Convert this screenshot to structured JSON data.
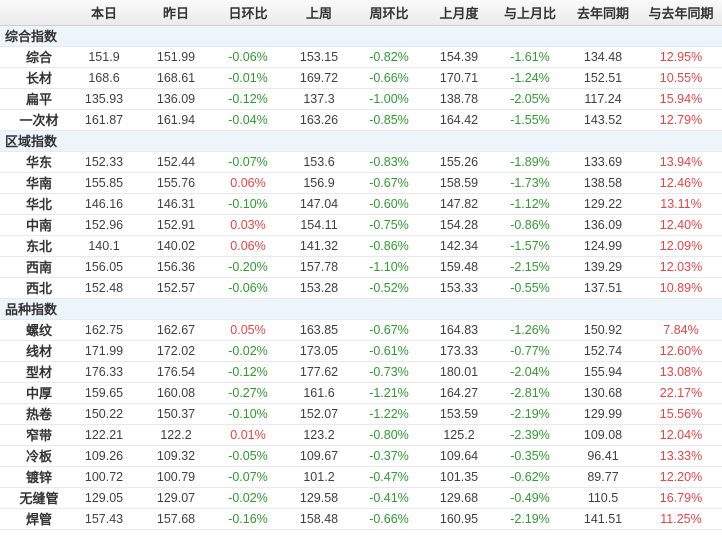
{
  "colors": {
    "negative_percent_green": "#319a31",
    "positive_percent_red": "#e54545",
    "section_row_background": "#edf4fa",
    "header_background": "#efefef",
    "text_dark": "#333333"
  },
  "table": {
    "columns": [
      "",
      "本日",
      "昨日",
      "日环比",
      "上周",
      "周环比",
      "上月度",
      "与上月比",
      "去年同期",
      "与去年同期"
    ],
    "percent_column_indexes": [
      2,
      4,
      6,
      8
    ],
    "sections": [
      {
        "label": "综合指数",
        "rows": [
          {
            "label": "综合",
            "values": [
              "151.9",
              "151.99",
              "-0.06%",
              "153.15",
              "-0.82%",
              "154.39",
              "-1.61%",
              "134.48",
              "12.95%"
            ]
          },
          {
            "label": "长材",
            "values": [
              "168.6",
              "168.61",
              "-0.01%",
              "169.72",
              "-0.66%",
              "170.71",
              "-1.24%",
              "152.51",
              "10.55%"
            ]
          },
          {
            "label": "扁平",
            "values": [
              "135.93",
              "136.09",
              "-0.12%",
              "137.3",
              "-1.00%",
              "138.78",
              "-2.05%",
              "117.24",
              "15.94%"
            ]
          },
          {
            "label": "一次材",
            "values": [
              "161.87",
              "161.94",
              "-0.04%",
              "163.26",
              "-0.85%",
              "164.42",
              "-1.55%",
              "143.52",
              "12.79%"
            ]
          }
        ]
      },
      {
        "label": "区域指数",
        "rows": [
          {
            "label": "华东",
            "values": [
              "152.33",
              "152.44",
              "-0.07%",
              "153.6",
              "-0.83%",
              "155.26",
              "-1.89%",
              "133.69",
              "13.94%"
            ]
          },
          {
            "label": "华南",
            "values": [
              "155.85",
              "155.76",
              "0.06%",
              "156.9",
              "-0.67%",
              "158.59",
              "-1.73%",
              "138.58",
              "12.46%"
            ]
          },
          {
            "label": "华北",
            "values": [
              "146.16",
              "146.31",
              "-0.10%",
              "147.04",
              "-0.60%",
              "147.82",
              "-1.12%",
              "129.22",
              "13.11%"
            ]
          },
          {
            "label": "中南",
            "values": [
              "152.96",
              "152.91",
              "0.03%",
              "154.11",
              "-0.75%",
              "154.28",
              "-0.86%",
              "136.09",
              "12.40%"
            ]
          },
          {
            "label": "东北",
            "values": [
              "140.1",
              "140.02",
              "0.06%",
              "141.32",
              "-0.86%",
              "142.34",
              "-1.57%",
              "124.99",
              "12.09%"
            ]
          },
          {
            "label": "西南",
            "values": [
              "156.05",
              "156.36",
              "-0.20%",
              "157.78",
              "-1.10%",
              "159.48",
              "-2.15%",
              "139.29",
              "12.03%"
            ]
          },
          {
            "label": "西北",
            "values": [
              "152.48",
              "152.57",
              "-0.06%",
              "153.28",
              "-0.52%",
              "153.33",
              "-0.55%",
              "137.51",
              "10.89%"
            ]
          }
        ]
      },
      {
        "label": "品种指数",
        "rows": [
          {
            "label": "螺纹",
            "values": [
              "162.75",
              "162.67",
              "0.05%",
              "163.85",
              "-0.67%",
              "164.83",
              "-1.26%",
              "150.92",
              "7.84%"
            ]
          },
          {
            "label": "线材",
            "values": [
              "171.99",
              "172.02",
              "-0.02%",
              "173.05",
              "-0.61%",
              "173.33",
              "-0.77%",
              "152.74",
              "12.60%"
            ]
          },
          {
            "label": "型材",
            "values": [
              "176.33",
              "176.54",
              "-0.12%",
              "177.62",
              "-0.73%",
              "180.01",
              "-2.04%",
              "155.94",
              "13.08%"
            ]
          },
          {
            "label": "中厚",
            "values": [
              "159.65",
              "160.08",
              "-0.27%",
              "161.6",
              "-1.21%",
              "164.27",
              "-2.81%",
              "130.68",
              "22.17%"
            ]
          },
          {
            "label": "热卷",
            "values": [
              "150.22",
              "150.37",
              "-0.10%",
              "152.07",
              "-1.22%",
              "153.59",
              "-2.19%",
              "129.99",
              "15.56%"
            ]
          },
          {
            "label": "窄带",
            "values": [
              "122.21",
              "122.2",
              "0.01%",
              "123.2",
              "-0.80%",
              "125.2",
              "-2.39%",
              "109.08",
              "12.04%"
            ]
          },
          {
            "label": "冷板",
            "values": [
              "109.26",
              "109.32",
              "-0.05%",
              "109.67",
              "-0.37%",
              "109.64",
              "-0.35%",
              "96.41",
              "13.33%"
            ]
          },
          {
            "label": "镀锌",
            "values": [
              "100.72",
              "100.79",
              "-0.07%",
              "101.2",
              "-0.47%",
              "101.35",
              "-0.62%",
              "89.77",
              "12.20%"
            ]
          },
          {
            "label": "无缝管",
            "values": [
              "129.05",
              "129.07",
              "-0.02%",
              "129.58",
              "-0.41%",
              "129.68",
              "-0.49%",
              "110.5",
              "16.79%"
            ]
          },
          {
            "label": "焊管",
            "values": [
              "157.43",
              "157.68",
              "-0.16%",
              "158.48",
              "-0.66%",
              "160.95",
              "-2.19%",
              "141.51",
              "11.25%"
            ]
          }
        ]
      }
    ]
  }
}
